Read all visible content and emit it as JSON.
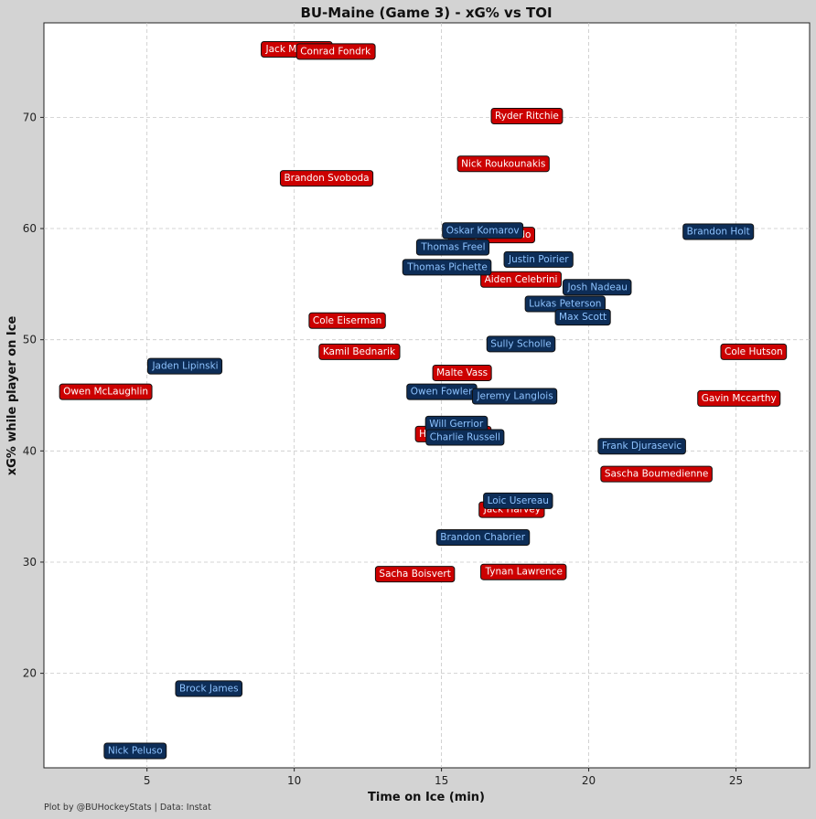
{
  "chart_data": {
    "type": "scatter",
    "title": "BU-Maine (Game 3) - xG% vs TOI",
    "xlabel": "Time on Ice (min)",
    "ylabel": "xG% while player on Ice",
    "xlim": [
      1.5,
      27.5
    ],
    "ylim": [
      11.5,
      78.5
    ],
    "xticks": [
      5,
      10,
      15,
      20,
      25
    ],
    "yticks": [
      20,
      30,
      40,
      50,
      60,
      70
    ],
    "grid": true,
    "colors": {
      "red_fill": "#cc0000",
      "red_text": "#ffffff",
      "blue_fill": "#0d2d57",
      "blue_text": "#8ec3ff"
    },
    "series": [
      {
        "name": "red",
        "points": [
          {
            "label": "Jack Murtagh",
            "x": 10.1,
            "y": 76.2
          },
          {
            "label": "Conrad Fondrk",
            "x": 11.4,
            "y": 76.0
          },
          {
            "label": "Ryder Ritchie",
            "x": 17.9,
            "y": 70.2
          },
          {
            "label": "Nick Roukounakis",
            "x": 17.1,
            "y": 65.9
          },
          {
            "label": "Brandon Svoboda",
            "x": 11.1,
            "y": 64.6
          },
          {
            "label": "Mikey Lombardo",
            "x": 16.7,
            "y": 59.5
          },
          {
            "label": "Aiden Celebrini",
            "x": 17.7,
            "y": 55.5
          },
          {
            "label": "Cole Eiserman",
            "x": 11.8,
            "y": 51.8
          },
          {
            "label": "Kamil Bednarik",
            "x": 12.2,
            "y": 49.0
          },
          {
            "label": "Owen McLaughlin",
            "x": 3.6,
            "y": 45.4
          },
          {
            "label": "Cole Hutson",
            "x": 25.6,
            "y": 49.0
          },
          {
            "label": "Malte Vass",
            "x": 15.7,
            "y": 47.1
          },
          {
            "label": "Gavin Mccarthy",
            "x": 25.1,
            "y": 44.8
          },
          {
            "label": "Harrison Scott",
            "x": 15.4,
            "y": 41.6
          },
          {
            "label": "Sascha Boumedienne",
            "x": 22.3,
            "y": 38.0
          },
          {
            "label": "Jack Harvey",
            "x": 17.4,
            "y": 34.8
          },
          {
            "label": "Sacha Boisvert",
            "x": 14.1,
            "y": 29.0
          },
          {
            "label": "Tynan Lawrence",
            "x": 17.8,
            "y": 29.2
          }
        ]
      },
      {
        "name": "blue",
        "points": [
          {
            "label": "Oskar Komarov",
            "x": 16.4,
            "y": 59.9
          },
          {
            "label": "Thomas Freel",
            "x": 15.4,
            "y": 58.4
          },
          {
            "label": "Justin Poirier",
            "x": 18.3,
            "y": 57.3
          },
          {
            "label": "Thomas Pichette",
            "x": 15.2,
            "y": 56.6
          },
          {
            "label": "Josh Nadeau",
            "x": 20.3,
            "y": 54.8
          },
          {
            "label": "Lukas Peterson",
            "x": 19.2,
            "y": 53.3
          },
          {
            "label": "Max Scott",
            "x": 19.8,
            "y": 52.1
          },
          {
            "label": "Brandon Holt",
            "x": 24.4,
            "y": 59.8
          },
          {
            "label": "Sully Scholle",
            "x": 17.7,
            "y": 49.7
          },
          {
            "label": "Jaden Lipinski",
            "x": 6.3,
            "y": 47.7
          },
          {
            "label": "Owen Fowler",
            "x": 15.0,
            "y": 45.4
          },
          {
            "label": "Jeremy Langlois",
            "x": 17.5,
            "y": 45.0
          },
          {
            "label": "Will Gerrior",
            "x": 15.5,
            "y": 42.5
          },
          {
            "label": "Charlie Russell",
            "x": 15.8,
            "y": 41.3
          },
          {
            "label": "Frank Djurasevic",
            "x": 21.8,
            "y": 40.5
          },
          {
            "label": "Loic Usereau",
            "x": 17.6,
            "y": 35.6
          },
          {
            "label": "Brandon Chabrier",
            "x": 16.4,
            "y": 32.3
          },
          {
            "label": "Brock James",
            "x": 7.1,
            "y": 18.7
          },
          {
            "label": "Nick Peluso",
            "x": 4.6,
            "y": 13.1
          }
        ]
      }
    ]
  },
  "footer": {
    "credit": "Plot by @BUHockeyStats | Data: Instat"
  }
}
